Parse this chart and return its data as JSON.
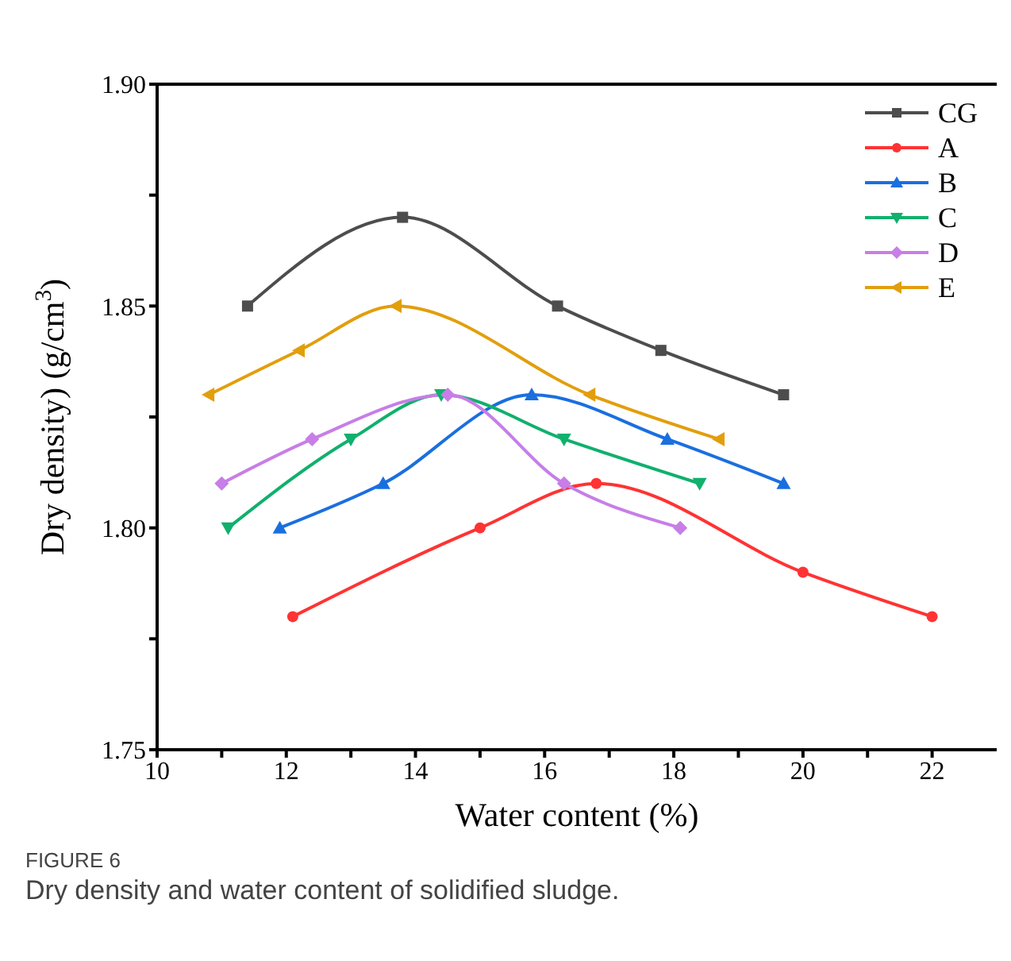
{
  "chart_data": {
    "type": "line",
    "xlabel": "Water content (%)",
    "ylabel": "Dry density) (g/cm$^{3}$)",
    "annotations": [
      "FIGURE 6",
      "Dry density and water content of solidified sludge."
    ],
    "xlim": [
      10,
      23
    ],
    "ylim": [
      1.75,
      1.9
    ],
    "xticks": [
      10,
      {
        "value": 11,
        "label": null
      },
      12,
      {
        "value": 13,
        "label": null
      },
      14,
      {
        "value": 15,
        "label": null
      },
      16,
      {
        "value": 17,
        "label": null
      },
      18,
      {
        "value": 19,
        "label": null
      },
      20,
      {
        "value": 21,
        "label": null
      },
      22
    ],
    "yticks": [
      {
        "value": 1.75,
        "label": "1.75"
      },
      {
        "value": 1.775,
        "label": null
      },
      {
        "value": 1.8,
        "label": "1.80"
      },
      {
        "value": 1.825,
        "label": null
      },
      {
        "value": 1.85,
        "label": "1.85"
      },
      {
        "value": 1.875,
        "label": null
      },
      {
        "value": 1.9,
        "label": "1.90"
      }
    ],
    "grid": false,
    "legend": "top right",
    "line_style": "solid",
    "series": [
      {
        "name": "CG",
        "color": "#4d4d4d",
        "marker": "square",
        "x": [
          11.4,
          13.8,
          16.2,
          17.8,
          19.7
        ],
        "values": [
          1.85,
          1.87,
          1.85,
          1.84,
          1.83
        ]
      },
      {
        "name": "A",
        "color": "#ff3333",
        "marker": "circle",
        "x": [
          12.1,
          15.0,
          16.8,
          20.0,
          22.0
        ],
        "values": [
          1.78,
          1.8,
          1.81,
          1.79,
          1.78
        ]
      },
      {
        "name": "B",
        "color": "#1a6fdf",
        "marker": "triangle",
        "x": [
          11.9,
          13.5,
          15.8,
          17.9,
          19.7
        ],
        "values": [
          1.8,
          1.81,
          1.83,
          1.82,
          1.81
        ]
      },
      {
        "name": "C",
        "color": "#10b06d",
        "marker": "triangle-down",
        "x": [
          11.1,
          13.0,
          14.4,
          16.3,
          18.4
        ],
        "values": [
          1.8,
          1.82,
          1.83,
          1.82,
          1.81
        ]
      },
      {
        "name": "D",
        "color": "#c77ee6",
        "marker": "diamond",
        "x": [
          11.0,
          12.4,
          14.5,
          16.3,
          18.1
        ],
        "values": [
          1.81,
          1.82,
          1.83,
          1.81,
          1.8
        ]
      },
      {
        "name": "E",
        "color": "#e29e0c",
        "marker": "triangle-left",
        "x": [
          10.8,
          12.2,
          13.7,
          16.7,
          18.7
        ],
        "values": [
          1.83,
          1.84,
          1.85,
          1.83,
          1.82
        ]
      }
    ]
  }
}
